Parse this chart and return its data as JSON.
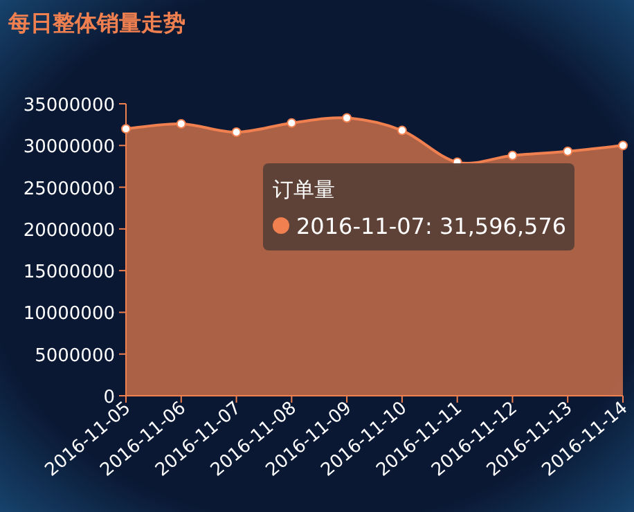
{
  "chart_data": {
    "type": "area",
    "title": "每日整体销量走势",
    "categories": [
      "2016-11-05",
      "2016-11-06",
      "2016-11-07",
      "2016-11-08",
      "2016-11-09",
      "2016-11-10",
      "2016-11-11",
      "2016-11-12",
      "2016-11-13",
      "2016-11-14"
    ],
    "series": [
      {
        "name": "订单量",
        "color": "#f0804f",
        "values": [
          32000000,
          32600000,
          31600000,
          32700000,
          33300000,
          31800000,
          28000000,
          28800000,
          29300000,
          30000000
        ]
      }
    ],
    "ylim": [
      0,
      35000000
    ],
    "yticks": [
      0,
      5000000,
      10000000,
      15000000,
      20000000,
      25000000,
      30000000,
      35000000
    ],
    "marker": "circle",
    "annotations": [
      "2016-11-07: 31,596,576"
    ]
  }
}
